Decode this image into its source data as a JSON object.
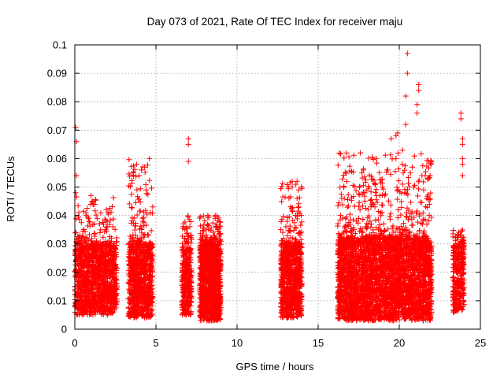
{
  "chart_data": {
    "type": "scatter",
    "title": "Day 073 of 2021, Rate Of TEC Index for receiver maju",
    "xlabel": "GPS time / hours",
    "ylabel": "ROTI / TECUs",
    "xlim": [
      0,
      25
    ],
    "ylim": [
      0,
      0.1
    ],
    "grid": true,
    "x_ticks": [
      0,
      5,
      10,
      15,
      20,
      25
    ],
    "x_tick_labels": [
      "0",
      "5",
      "10",
      "15",
      "20",
      "25"
    ],
    "y_ticks": [
      0,
      0.01,
      0.02,
      0.03,
      0.04,
      0.05,
      0.06,
      0.07,
      0.08,
      0.09,
      0.1
    ],
    "y_tick_labels": [
      "0",
      "0.01",
      "0.02",
      "0.03",
      "0.04",
      "0.05",
      "0.06",
      "0.07",
      "0.08",
      "0.09",
      "0.1"
    ],
    "marker": "+",
    "color": "#ff0000",
    "clusters": [
      {
        "x_start": 0.0,
        "x_end": 2.6,
        "y_core_min": 0.005,
        "y_core_max": 0.03,
        "y_max": 0.047,
        "density": 1400
      },
      {
        "x_start": 3.3,
        "x_end": 4.8,
        "y_core_min": 0.004,
        "y_core_max": 0.03,
        "y_max": 0.06,
        "density": 900
      },
      {
        "x_start": 6.6,
        "x_end": 7.2,
        "y_core_min": 0.005,
        "y_core_max": 0.028,
        "y_max": 0.04,
        "density": 350
      },
      {
        "x_start": 7.7,
        "x_end": 9.0,
        "y_core_min": 0.003,
        "y_core_max": 0.03,
        "y_max": 0.04,
        "density": 1200
      },
      {
        "x_start": 12.7,
        "x_end": 14.0,
        "y_core_min": 0.004,
        "y_core_max": 0.03,
        "y_max": 0.052,
        "density": 900
      },
      {
        "x_start": 16.2,
        "x_end": 22.0,
        "y_core_min": 0.003,
        "y_core_max": 0.032,
        "y_max": 0.062,
        "density": 3800
      },
      {
        "x_start": 23.3,
        "x_end": 24.0,
        "y_core_min": 0.006,
        "y_core_max": 0.03,
        "y_max": 0.035,
        "density": 350
      }
    ],
    "outliers": [
      {
        "x": 0.05,
        "y": 0.071
      },
      {
        "x": 0.1,
        "y": 0.066
      },
      {
        "x": 0.1,
        "y": 0.054
      },
      {
        "x": 0.05,
        "y": 0.048
      },
      {
        "x": 0.25,
        "y": 0.041
      },
      {
        "x": 1.0,
        "y": 0.047
      },
      {
        "x": 1.1,
        "y": 0.045
      },
      {
        "x": 4.6,
        "y": 0.06
      },
      {
        "x": 4.3,
        "y": 0.057
      },
      {
        "x": 4.1,
        "y": 0.056
      },
      {
        "x": 3.8,
        "y": 0.058
      },
      {
        "x": 3.6,
        "y": 0.055
      },
      {
        "x": 4.4,
        "y": 0.049
      },
      {
        "x": 4.8,
        "y": 0.043
      },
      {
        "x": 7.0,
        "y": 0.067
      },
      {
        "x": 7.0,
        "y": 0.065
      },
      {
        "x": 7.0,
        "y": 0.059
      },
      {
        "x": 8.2,
        "y": 0.04
      },
      {
        "x": 13.7,
        "y": 0.052
      },
      {
        "x": 13.8,
        "y": 0.049
      },
      {
        "x": 13.7,
        "y": 0.046
      },
      {
        "x": 13.8,
        "y": 0.043
      },
      {
        "x": 12.7,
        "y": 0.035
      },
      {
        "x": 17.6,
        "y": 0.062
      },
      {
        "x": 17.7,
        "y": 0.055
      },
      {
        "x": 18.0,
        "y": 0.049
      },
      {
        "x": 19.5,
        "y": 0.067
      },
      {
        "x": 19.9,
        "y": 0.069
      },
      {
        "x": 19.8,
        "y": 0.068
      },
      {
        "x": 20.2,
        "y": 0.063
      },
      {
        "x": 19.3,
        "y": 0.056
      },
      {
        "x": 19.8,
        "y": 0.06
      },
      {
        "x": 20.2,
        "y": 0.058
      },
      {
        "x": 20.4,
        "y": 0.072
      },
      {
        "x": 20.4,
        "y": 0.082
      },
      {
        "x": 20.5,
        "y": 0.09
      },
      {
        "x": 20.5,
        "y": 0.097
      },
      {
        "x": 21.2,
        "y": 0.086
      },
      {
        "x": 21.2,
        "y": 0.084
      },
      {
        "x": 21.1,
        "y": 0.079
      },
      {
        "x": 21.1,
        "y": 0.076
      },
      {
        "x": 20.8,
        "y": 0.057
      },
      {
        "x": 20.9,
        "y": 0.05
      },
      {
        "x": 21.4,
        "y": 0.054
      },
      {
        "x": 21.6,
        "y": 0.054
      },
      {
        "x": 21.8,
        "y": 0.053
      },
      {
        "x": 21.9,
        "y": 0.054
      },
      {
        "x": 21.5,
        "y": 0.049
      },
      {
        "x": 21.7,
        "y": 0.046
      },
      {
        "x": 18.8,
        "y": 0.047
      },
      {
        "x": 18.5,
        "y": 0.043
      },
      {
        "x": 23.8,
        "y": 0.076
      },
      {
        "x": 23.8,
        "y": 0.074
      },
      {
        "x": 23.9,
        "y": 0.067
      },
      {
        "x": 23.9,
        "y": 0.065
      },
      {
        "x": 23.9,
        "y": 0.06
      },
      {
        "x": 23.9,
        "y": 0.058
      },
      {
        "x": 23.9,
        "y": 0.054
      }
    ],
    "random_seed": 73
  }
}
